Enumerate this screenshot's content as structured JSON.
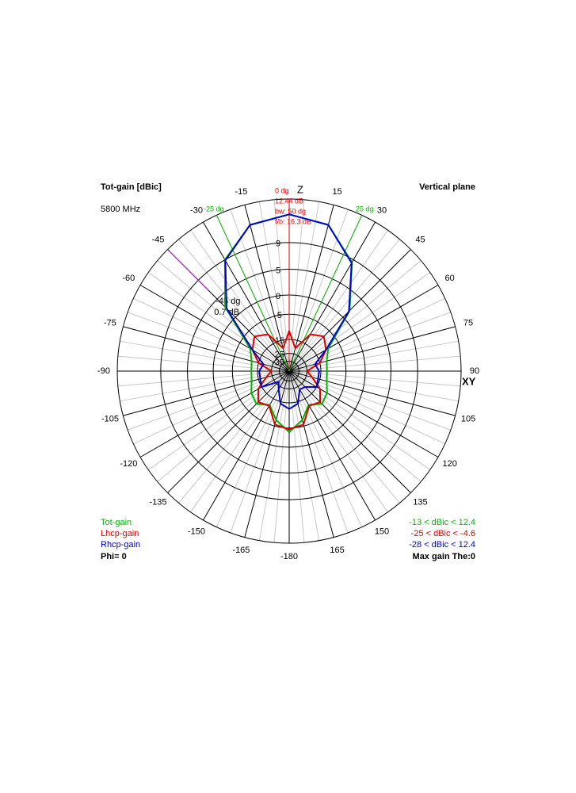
{
  "chart_data": {
    "type": "polar",
    "title": "Tot-gain [dBic]",
    "subtitle": "5800 MHz",
    "plane": "Vertical plane",
    "z_label": "Z",
    "xy_label": "XY",
    "footer_left": "Phi= 0",
    "footer_right": "Max gain The:0",
    "rmax": 14,
    "rticks": [
      9,
      5,
      0,
      -5,
      -15,
      -25,
      -35
    ],
    "thetaticks": [
      -165,
      -150,
      -135,
      -120,
      -105,
      -90,
      -75,
      -60,
      -45,
      -30,
      -15,
      15,
      30,
      45,
      60,
      75,
      90,
      105,
      120,
      135,
      150,
      165,
      -180
    ],
    "theta": [
      -180,
      -165,
      -150,
      -135,
      -120,
      -105,
      -90,
      -75,
      -60,
      -45,
      -30,
      -15,
      0,
      15,
      30,
      45,
      60,
      75,
      90,
      105,
      120,
      135,
      150,
      165,
      180
    ],
    "series": [
      {
        "name": "Tot-gain",
        "color": "#00b400",
        "range_label": "-13 < dBic < 12.4",
        "values": [
          -3.8,
          -7,
          -11.5,
          -8.5,
          -9.5,
          -11.5,
          -12,
          -11.5,
          -9,
          3,
          9,
          11.8,
          12.4,
          11.8,
          8.6,
          2,
          -9,
          -11.5,
          -12,
          -11.5,
          -9.5,
          -8.5,
          -11.5,
          -7,
          -3.8
        ]
      },
      {
        "name": "Lhcp-gain",
        "color": "#e00000",
        "range_label": "-25 < dBic < -4.6",
        "values": [
          -4.6,
          -5.5,
          -11,
          -9.5,
          -13,
          -20,
          -25,
          -15,
          -10,
          -7.5,
          -10,
          -20,
          -11,
          -20,
          -10,
          -7.5,
          -10,
          -15,
          -25,
          -20,
          -13,
          -9.5,
          -11,
          -5.5,
          -4.6
        ]
      },
      {
        "name": "Rhcp-gain",
        "color": "#0000d0",
        "range_label": "-28 < dBic < 12.4",
        "values": [
          -12,
          -14,
          -22,
          -28,
          -15,
          -16,
          -16,
          -18,
          -10,
          2.6,
          8.9,
          11.8,
          12.4,
          11.8,
          8.5,
          1.8,
          -10,
          -18,
          -16,
          -16,
          -15,
          -21,
          -22,
          -14,
          -12
        ]
      }
    ],
    "max_marker": {
      "angle": 0,
      "angle_label": "0 dg",
      "gain_label": "12.44 dB",
      "bw_label": "bw: 50 dg",
      "fb_label": "f/b: 16.3 dB"
    },
    "beam_edges": [
      {
        "angle": -25,
        "label": "-25 dg"
      },
      {
        "angle": 25,
        "label": "25 dg"
      }
    ],
    "cursor": {
      "angle": -45,
      "label": "-45 dg",
      "value_label": "0.7 dB"
    }
  }
}
